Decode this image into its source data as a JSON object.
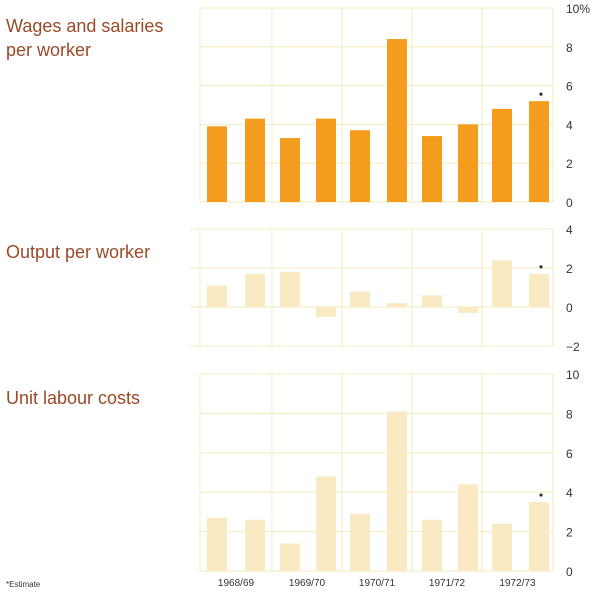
{
  "footnote": "*Estimate",
  "chart_data": {
    "type": "bar",
    "categories": [
      "1968/69",
      "1969/70",
      "1970/71",
      "1971/72",
      "1972/73"
    ],
    "x_halves": [
      "1968/69 H1",
      "1968/69 H2",
      "1969/70 H1",
      "1969/70 H2",
      "1970/71 H1",
      "1970/71 H2",
      "1971/72 H1",
      "1971/72 H2",
      "1972/73 H1",
      "1972/73 H2"
    ],
    "panels": [
      {
        "title_lines": [
          "Wages and salaries",
          "per worker"
        ],
        "ylim": [
          0,
          10
        ],
        "ticks": [
          "0",
          "2",
          "4",
          "6",
          "8",
          "10%"
        ],
        "color": "#f39c1e",
        "values": [
          3.9,
          4.3,
          3.3,
          4.3,
          3.7,
          8.4,
          3.4,
          4.0,
          4.8,
          5.2
        ],
        "estimate_marker_index": 9
      },
      {
        "title_lines": [
          "Output per worker"
        ],
        "ylim": [
          -2,
          4
        ],
        "ticks": [
          "−2",
          "0",
          "2",
          "4"
        ],
        "color": "#faeac4",
        "values": [
          1.1,
          1.7,
          1.8,
          -0.5,
          0.8,
          0.2,
          0.6,
          -0.3,
          2.4,
          1.7
        ],
        "estimate_marker_index": 9
      },
      {
        "title_lines": [
          "Unit labour costs"
        ],
        "ylim": [
          0,
          10
        ],
        "ticks": [
          "0",
          "2",
          "4",
          "6",
          "8",
          "10"
        ],
        "color": "#faeac4",
        "values": [
          2.7,
          2.6,
          1.4,
          4.8,
          2.9,
          8.1,
          2.6,
          4.4,
          2.4,
          3.5
        ],
        "estimate_marker_index": 9
      }
    ],
    "grid": true,
    "estimate_marker": "*"
  }
}
